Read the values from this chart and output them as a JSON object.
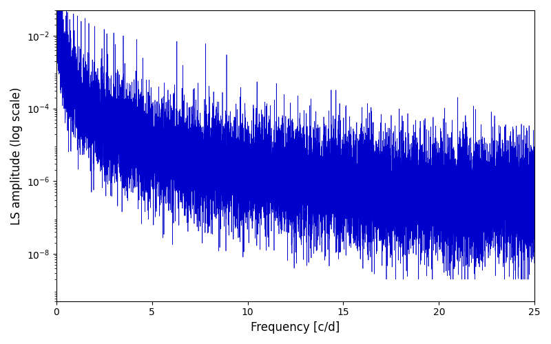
{
  "title": "",
  "xlabel": "Frequency [c/d]",
  "ylabel": "LS amplitude (log scale)",
  "line_color": "#0000cc",
  "line_width": 0.5,
  "xlim": [
    0,
    25
  ],
  "ylim": [
    5e-10,
    0.05
  ],
  "yscale": "log",
  "freq_max": 25.0,
  "n_points": 15000,
  "seed": 7,
  "background_color": "#ffffff",
  "figsize": [
    8.0,
    5.0
  ],
  "dpi": 100,
  "yticks": [
    1e-08,
    1e-06,
    0.0001,
    0.01
  ]
}
